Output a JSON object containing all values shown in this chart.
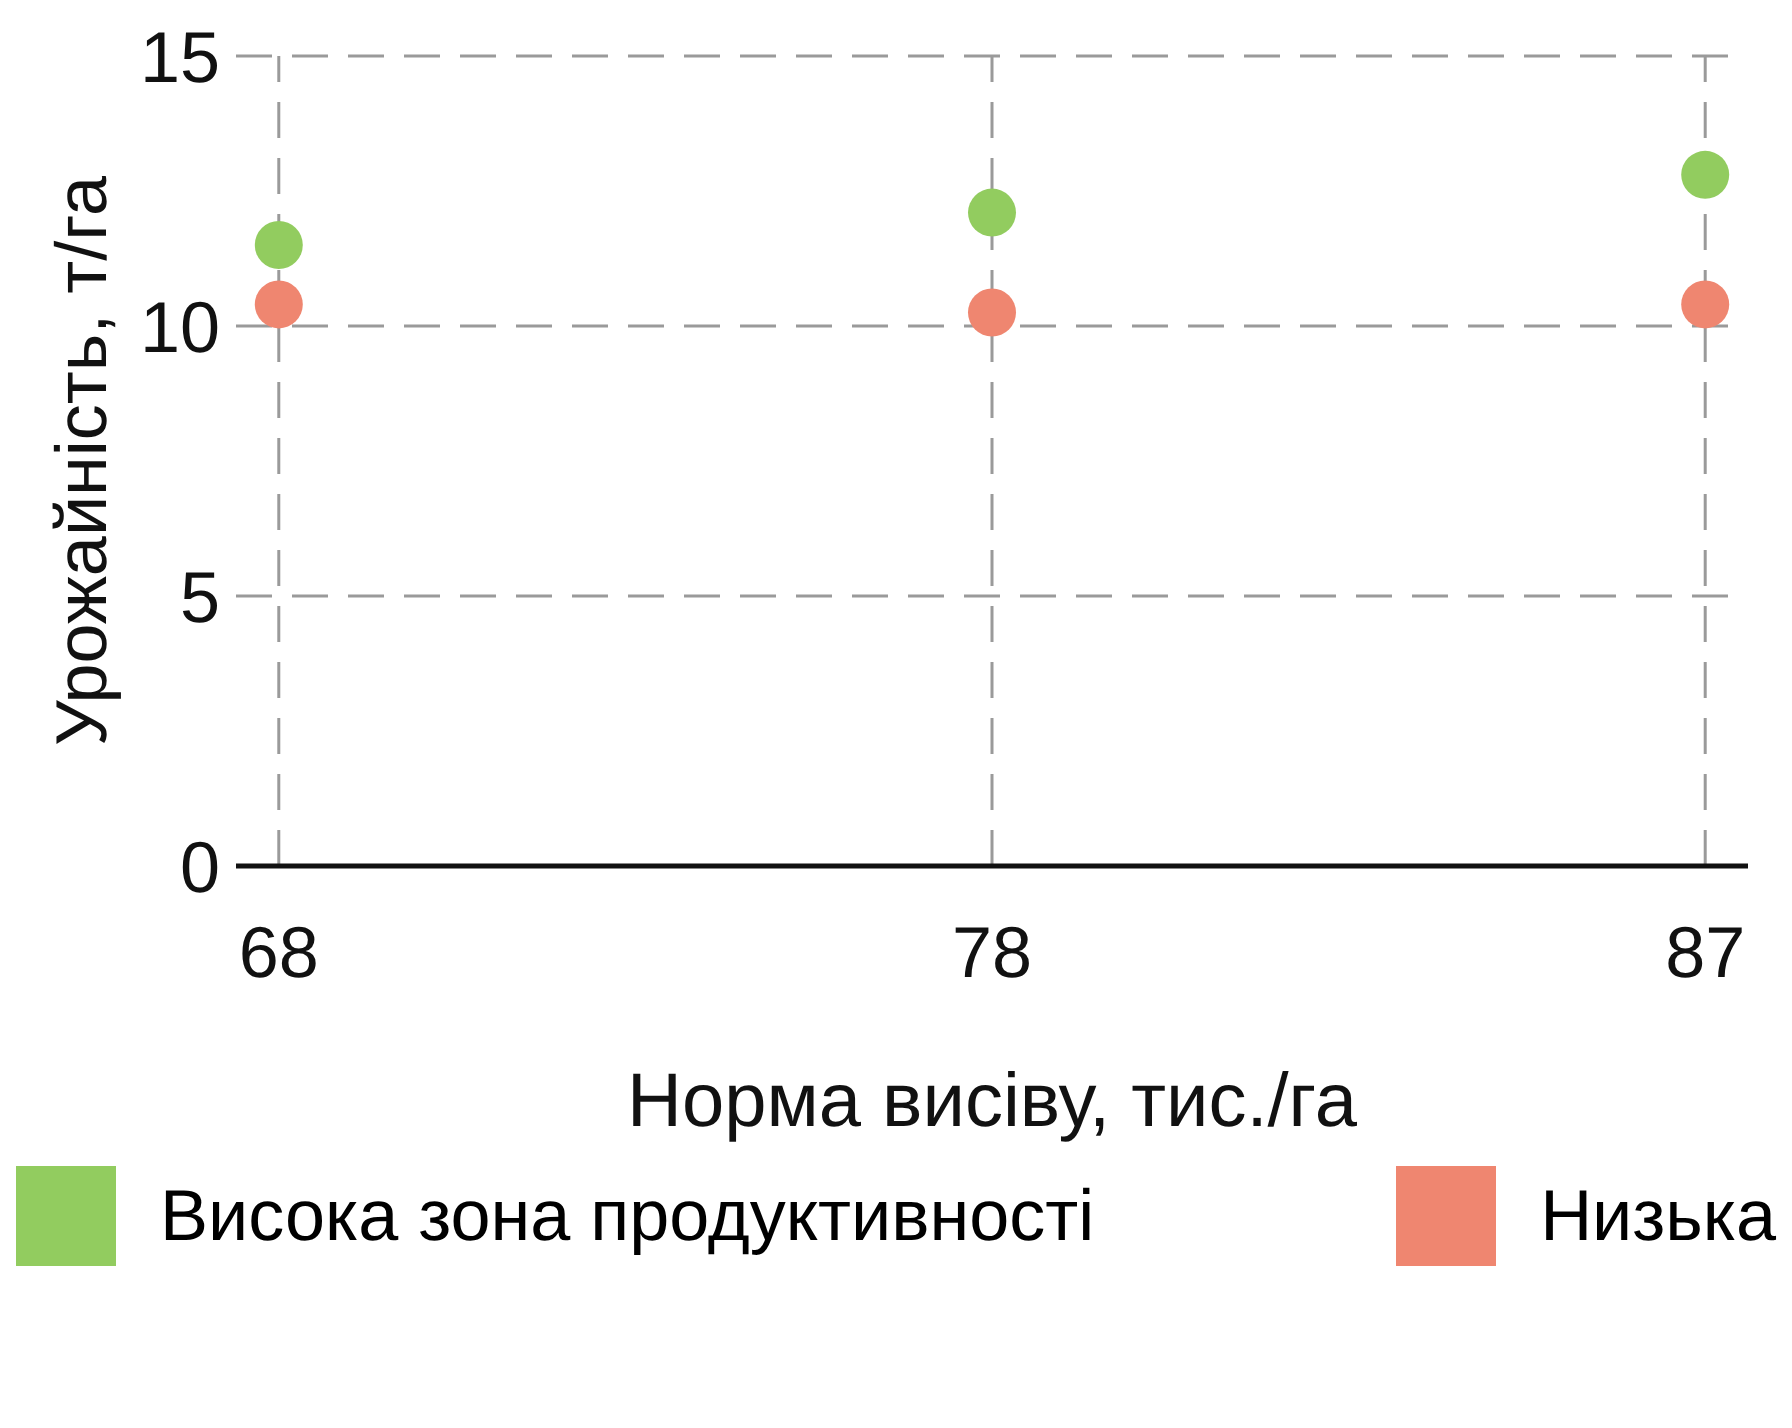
{
  "chart_data": {
    "type": "scatter",
    "xlabel": "Норма висіву, тис./га",
    "ylabel": "Урожайність, т/га",
    "categories": [
      "68",
      "78",
      "87"
    ],
    "series": [
      {
        "name": "Висока зона продуктивності",
        "color": "#92cc5f",
        "values": [
          11.5,
          12.1,
          12.8
        ]
      },
      {
        "name": "Низька",
        "color": "#ef8670",
        "values": [
          10.4,
          10.25,
          10.4
        ]
      }
    ],
    "ylim": [
      0,
      15
    ],
    "yticks": [
      0,
      5,
      10,
      15
    ],
    "grid": true,
    "legend": "bottom",
    "marker": "circle"
  }
}
